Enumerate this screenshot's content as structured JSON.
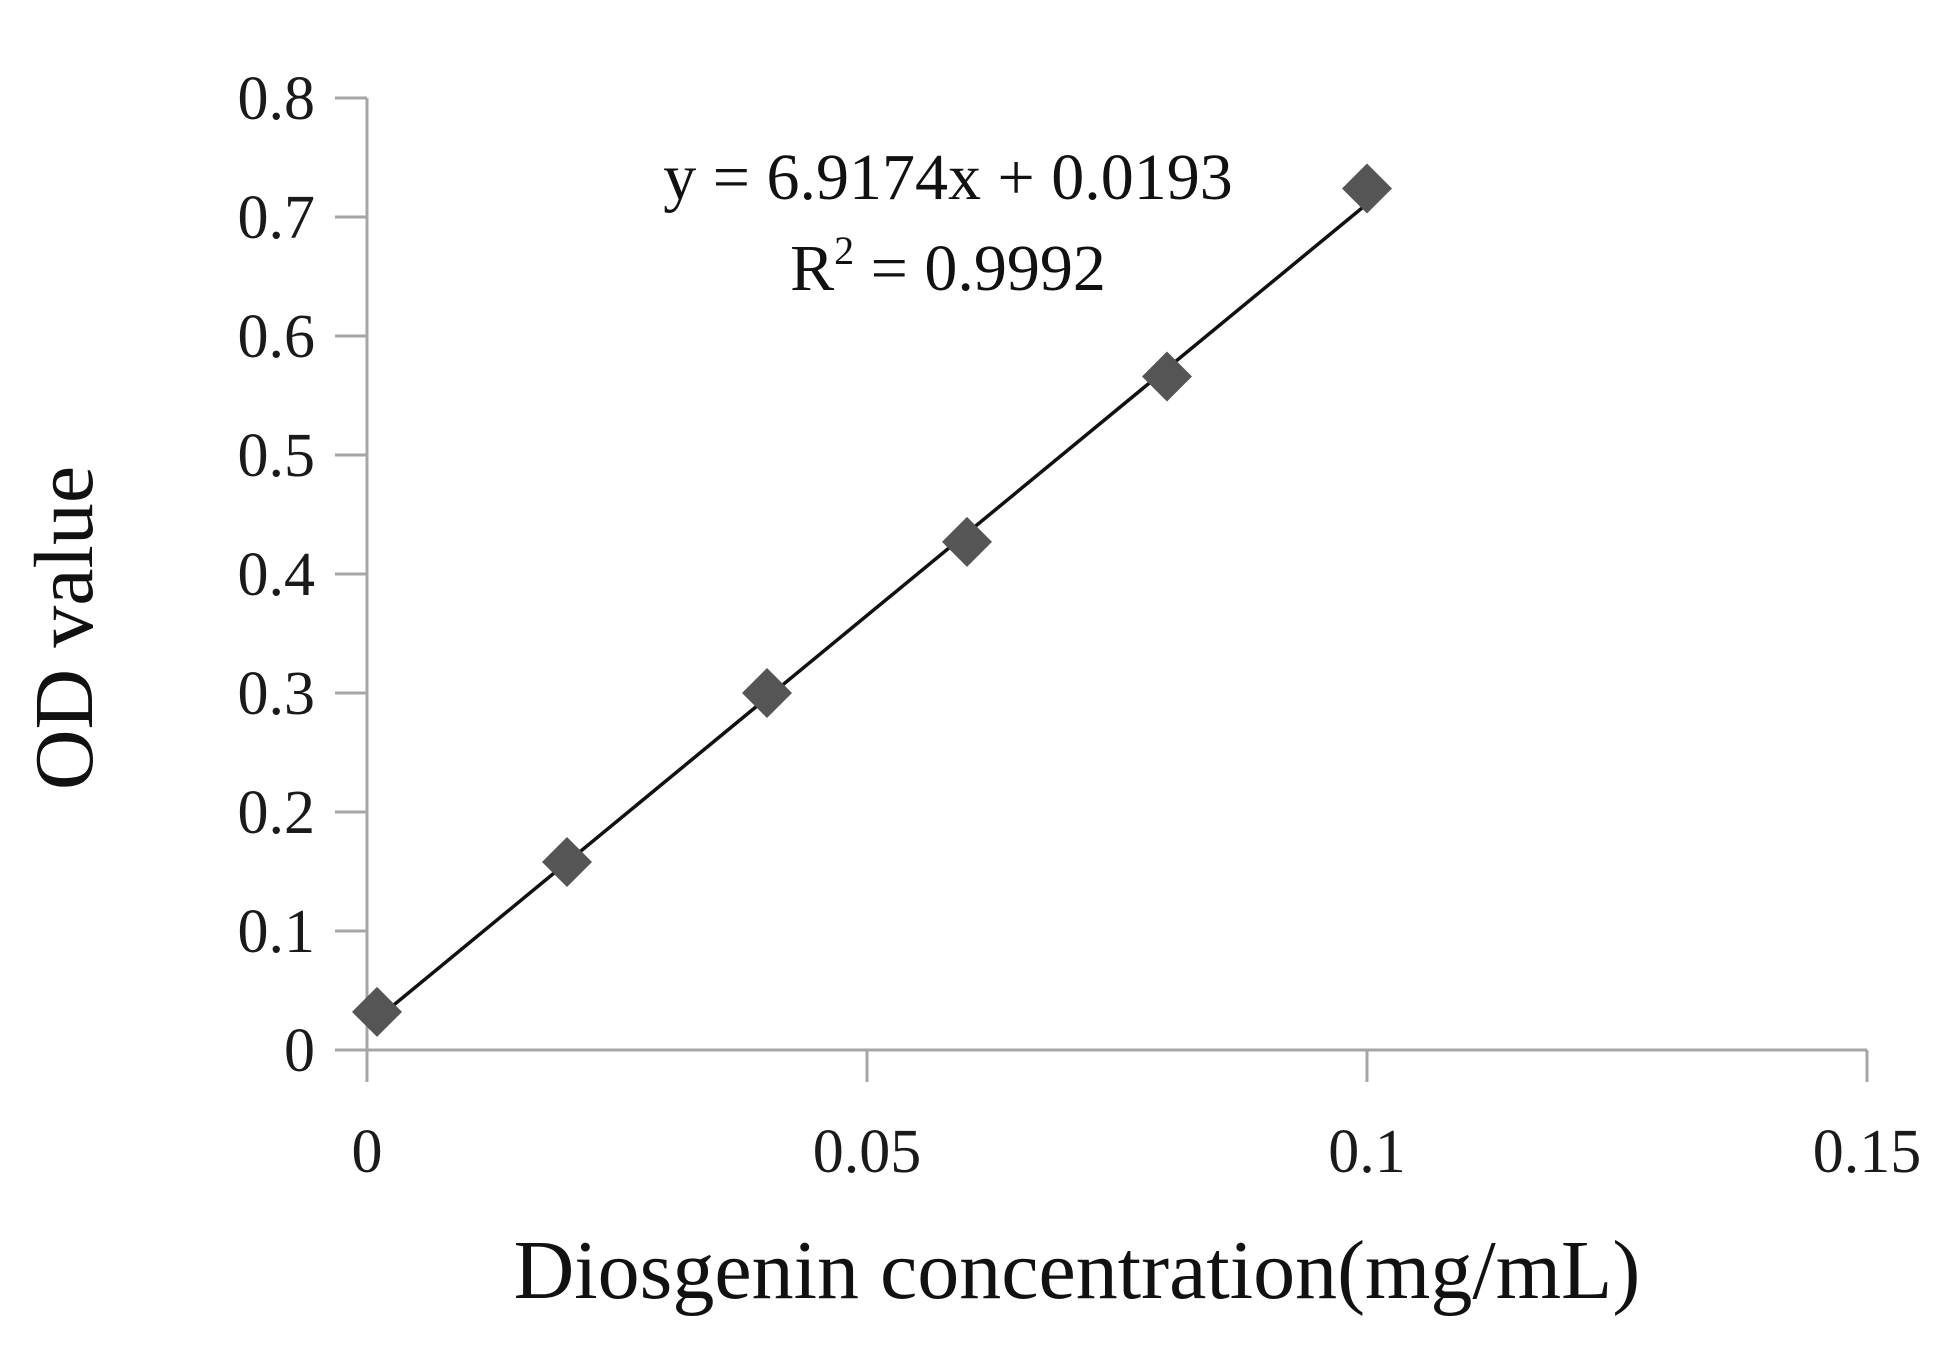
{
  "chart_data": {
    "type": "scatter",
    "xlabel": "Diosgenin concentration(mg/mL)",
    "ylabel": "OD value",
    "xlim": [
      0,
      0.15
    ],
    "ylim": [
      0,
      0.8
    ],
    "x_ticks": [
      "0",
      "0.05",
      "0.1",
      "0.15"
    ],
    "y_ticks": [
      "0",
      "0.1",
      "0.2",
      "0.3",
      "0.4",
      "0.5",
      "0.6",
      "0.7",
      "0.8"
    ],
    "series": [
      {
        "x": [
          0.001,
          0.02,
          0.04,
          0.06,
          0.08,
          0.1
        ],
        "y": [
          0.032,
          0.158,
          0.3,
          0.427,
          0.566,
          0.724
        ],
        "marker": "diamond",
        "color": "#555555"
      }
    ],
    "trendline": {
      "slope": 6.9174,
      "intercept": 0.0193,
      "x_range": [
        0.001,
        0.1
      ],
      "color": "#111111"
    },
    "annotation": {
      "equation": "y = 6.9174x + 0.0193",
      "r2_prefix": "R",
      "r2_sup": "2",
      "r2_suffix": " = 0.9992"
    },
    "grid": false,
    "axis_color": "#a6a6a6"
  }
}
